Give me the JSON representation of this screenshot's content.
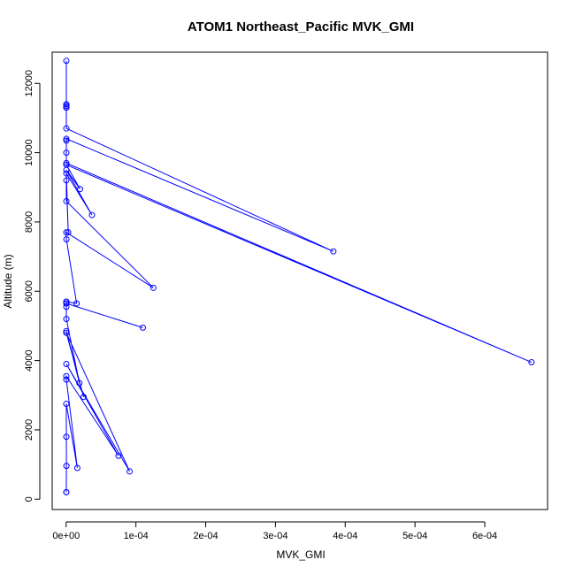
{
  "chart_data": {
    "type": "line",
    "title": "ATOM1 Northeast_Pacific MVK_GMI",
    "xlabel": "MVK_GMI",
    "ylabel": "Altitude (m)",
    "xlim": [
      -2e-05,
      0.00069
    ],
    "ylim": [
      -300,
      12900
    ],
    "x_ticks": [
      0,
      0.0001,
      0.0002,
      0.0003,
      0.0004,
      0.0005,
      0.0006
    ],
    "x_tick_labels": [
      "0e+00",
      "1e-04",
      "2e-04",
      "3e-04",
      "4e-04",
      "5e-04",
      "6e-04"
    ],
    "y_ticks": [
      0,
      2000,
      4000,
      6000,
      8000,
      10000,
      12000
    ],
    "y_tick_labels": [
      "0",
      "2000",
      "4000",
      "6000",
      "8000",
      "10000",
      "12000"
    ],
    "grid": false,
    "marker": "open-circle",
    "colors": {
      "series": "#0000ff",
      "axis": "#000000",
      "background": "#ffffff"
    },
    "series": [
      {
        "x": [
          3e-07,
          2e-07,
          4e-07,
          3e-07,
          2e-07,
          1.6e-05,
          3e-07,
          2e-07,
          7.5e-05,
          3e-07,
          9.1e-05,
          3e-07,
          2.5e-05,
          2e-07,
          1.9e-05,
          3e-07,
          3e-07,
          3e-07,
          2e-07,
          0.00011,
          3e-07,
          3e-07,
          1.5e-05,
          4e-07,
          3e-07,
          0.000125,
          3e-07,
          3e-07,
          3e-06,
          3e-07,
          3.7e-05,
          3e-07,
          2e-05,
          3e-07,
          0.000667,
          3e-07,
          3e-07,
          3e-07,
          3e-07,
          0.000383,
          3e-07,
          3e-07,
          3e-07,
          3e-07,
          3e-07,
          3e-07,
          3e-07
        ],
        "y": [
          200,
          200,
          960,
          1800,
          2750,
          900,
          3450,
          3550,
          1250,
          3900,
          800,
          4800,
          2950,
          4850,
          3350,
          5200,
          5550,
          5700,
          5650,
          4950,
          5650,
          5700,
          5650,
          7500,
          7700,
          6100,
          8600,
          9200,
          7700,
          9400,
          8200,
          9500,
          8950,
          9650,
          3950,
          9700,
          10000,
          10350,
          10400,
          7150,
          10700,
          11300,
          11350,
          11400,
          12650,
          11350,
          11300
        ]
      }
    ]
  }
}
